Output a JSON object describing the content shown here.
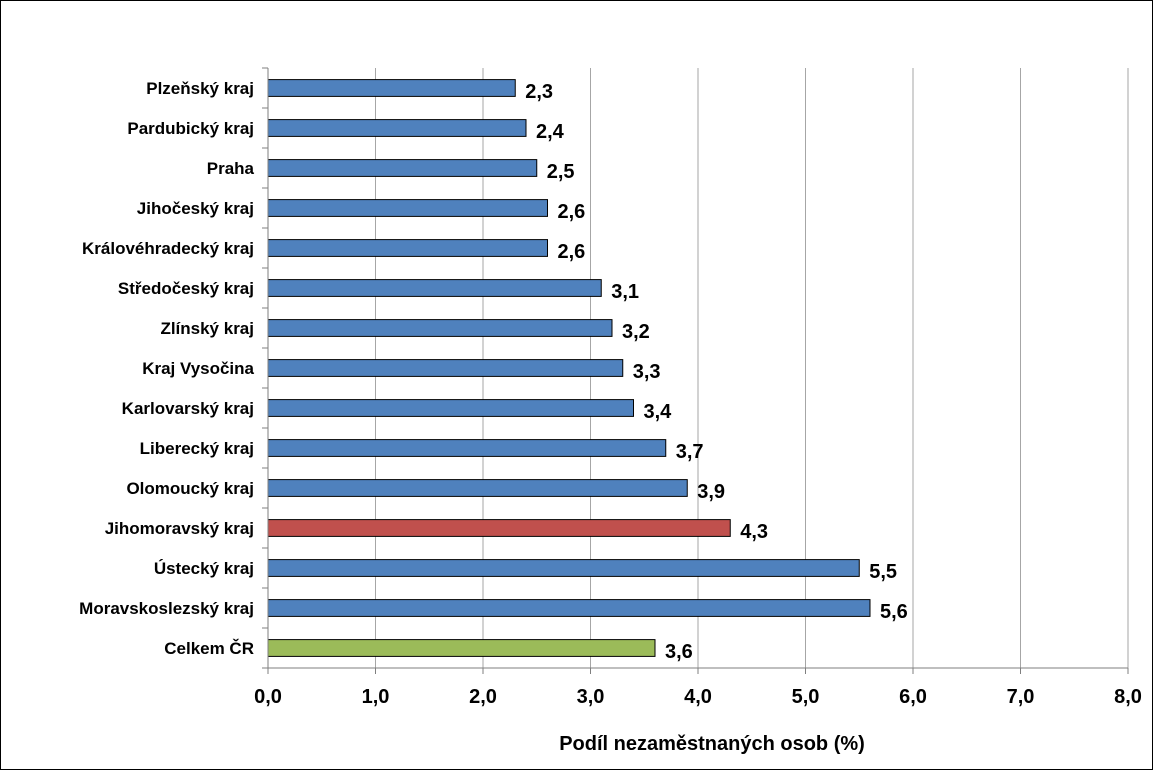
{
  "chart_data": {
    "type": "bar",
    "orientation": "horizontal",
    "categories": [
      "Plzeňský kraj",
      "Pardubický kraj",
      "Praha",
      "Jihočeský kraj",
      "Královéhradecký kraj",
      "Středočeský kraj",
      "Zlínský kraj",
      "Kraj Vysočina",
      "Karlovarský kraj",
      "Liberecký kraj",
      "Olomoucký kraj",
      "Jihomoravský kraj",
      "Ústecký kraj",
      "Moravskoslezský kraj",
      "Celkem ČR"
    ],
    "values": [
      2.3,
      2.4,
      2.5,
      2.6,
      2.6,
      3.1,
      3.2,
      3.3,
      3.4,
      3.7,
      3.9,
      4.3,
      5.5,
      5.6,
      3.6
    ],
    "value_labels": [
      "2,3",
      "2,4",
      "2,5",
      "2,6",
      "2,6",
      "3,1",
      "3,2",
      "3,3",
      "3,4",
      "3,7",
      "3,9",
      "4,3",
      "5,5",
      "5,6",
      "3,6"
    ],
    "bar_colors": [
      "#4f81bd",
      "#4f81bd",
      "#4f81bd",
      "#4f81bd",
      "#4f81bd",
      "#4f81bd",
      "#4f81bd",
      "#4f81bd",
      "#4f81bd",
      "#4f81bd",
      "#4f81bd",
      "#c0504d",
      "#4f81bd",
      "#4f81bd",
      "#9bbb59"
    ],
    "xlim": [
      0,
      8
    ],
    "x_ticks": [
      0,
      1,
      2,
      3,
      4,
      5,
      6,
      7,
      8
    ],
    "x_tick_labels": [
      "0,0",
      "1,0",
      "2,0",
      "3,0",
      "4,0",
      "5,0",
      "6,0",
      "7,0",
      "8,0"
    ],
    "xlabel": "Podíl nezaměstnaných osob (%)",
    "grid": "vertical",
    "legend": "none"
  }
}
